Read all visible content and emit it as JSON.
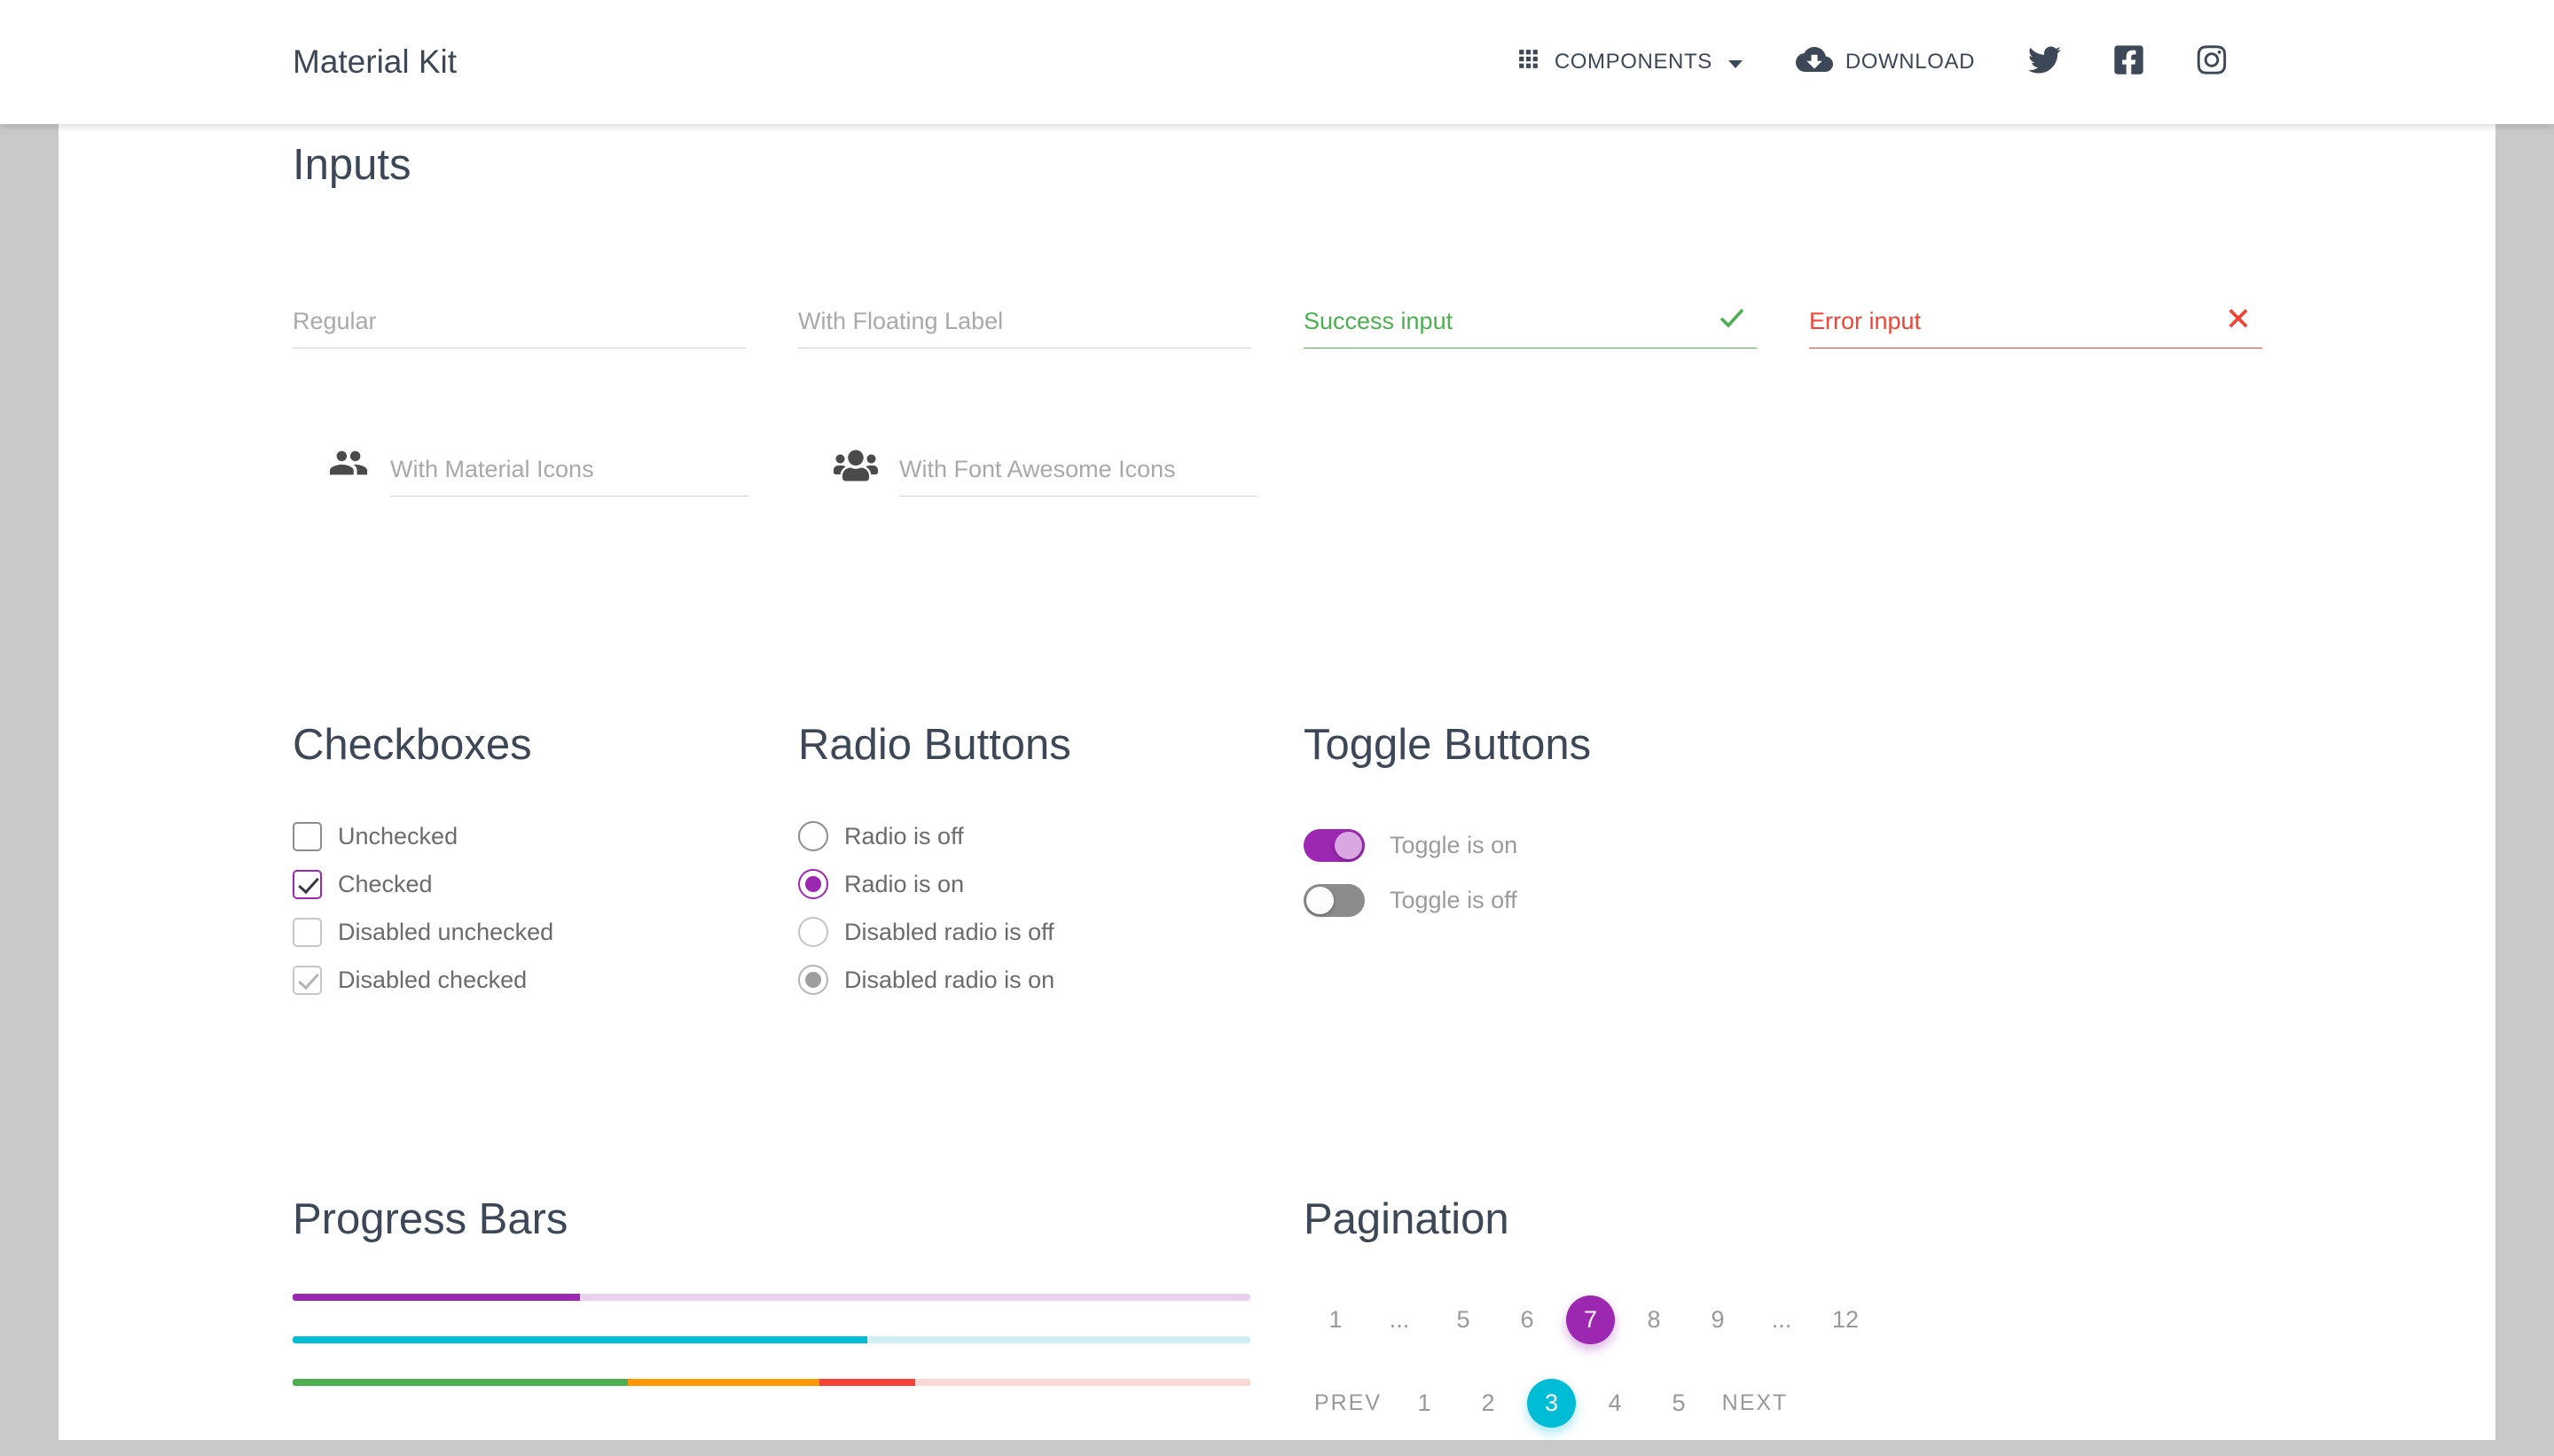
{
  "header": {
    "brand": "Material Kit",
    "nav": {
      "components_label": "COMPONENTS",
      "download_label": "DOWNLOAD",
      "social_icons": [
        "twitter-icon",
        "facebook-icon",
        "instagram-icon"
      ]
    }
  },
  "sections": {
    "inputs": {
      "title": "Inputs",
      "fields": {
        "regular_placeholder": "Regular",
        "floating_placeholder": "With Floating Label",
        "success_value": "Success input",
        "error_value": "Error input",
        "material_icon_placeholder": "With Material Icons",
        "fontawesome_placeholder": "With Font Awesome Icons"
      }
    },
    "checkboxes": {
      "title": "Checkboxes",
      "items": [
        {
          "label": "Unchecked",
          "checked": false,
          "disabled": false
        },
        {
          "label": "Checked",
          "checked": true,
          "disabled": false
        },
        {
          "label": "Disabled unchecked",
          "checked": false,
          "disabled": true
        },
        {
          "label": "Disabled checked",
          "checked": true,
          "disabled": true
        }
      ]
    },
    "radios": {
      "title": "Radio Buttons",
      "items": [
        {
          "label": "Radio is off",
          "on": false,
          "disabled": false
        },
        {
          "label": "Radio is on",
          "on": true,
          "disabled": false
        },
        {
          "label": "Disabled radio is off",
          "on": false,
          "disabled": true
        },
        {
          "label": "Disabled radio is on",
          "on": true,
          "disabled": true
        }
      ]
    },
    "toggles": {
      "title": "Toggle Buttons",
      "items": [
        {
          "label": "Toggle is on",
          "on": true
        },
        {
          "label": "Toggle is off",
          "on": false
        }
      ]
    },
    "progress": {
      "title": "Progress Bars",
      "bars": [
        {
          "track": "#e9d2ef",
          "segments": [
            {
              "color": "#9c27b0",
              "percent": 30
            }
          ]
        },
        {
          "track": "#d2f0f4",
          "segments": [
            {
              "color": "#00bcd4",
              "percent": 60
            }
          ]
        },
        {
          "track": "#f8d7d5",
          "segments": [
            {
              "color": "#4caf50",
              "percent": 35
            },
            {
              "color": "#ff9800",
              "percent": 20
            },
            {
              "color": "#f44336",
              "percent": 10
            }
          ]
        }
      ]
    },
    "pagination": {
      "title": "Pagination",
      "row1": [
        {
          "label": "1"
        },
        {
          "label": "..."
        },
        {
          "label": "5"
        },
        {
          "label": "6"
        },
        {
          "label": "7",
          "active": true,
          "color": "#9c27b0"
        },
        {
          "label": "8"
        },
        {
          "label": "9"
        },
        {
          "label": "..."
        },
        {
          "label": "12"
        }
      ],
      "row2": [
        {
          "label": "PREV"
        },
        {
          "label": "1"
        },
        {
          "label": "2"
        },
        {
          "label": "3",
          "active": true,
          "color": "#00bcd4"
        },
        {
          "label": "4"
        },
        {
          "label": "5"
        },
        {
          "label": "NEXT"
        }
      ]
    }
  },
  "colors": {
    "primary_purple": "#9c27b0",
    "cyan": "#00bcd4",
    "success_green": "#4caf50",
    "error_red": "#f44336",
    "orange": "#ff9800",
    "heading": "#3C4858",
    "placeholder_gray": "#a9a9a9",
    "underline_gray": "#d2d2d2"
  }
}
